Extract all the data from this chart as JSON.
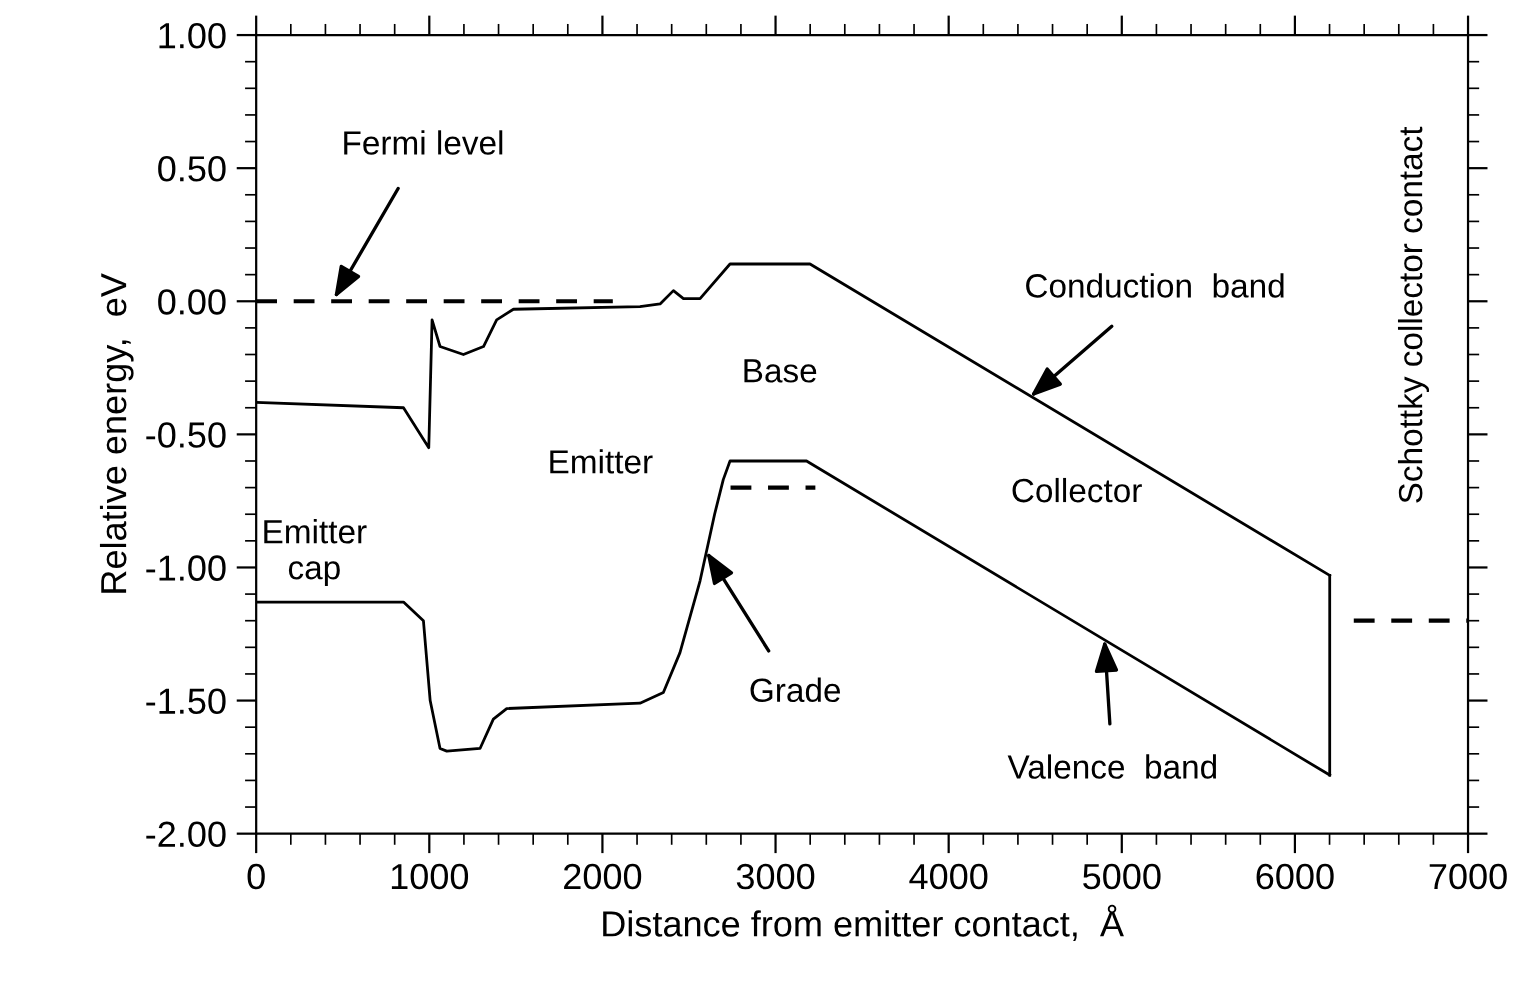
{
  "chart_data": {
    "type": "line",
    "xlabel": "Distance from emitter contact,  Å",
    "ylabel": "Relative energy,  eV",
    "xlim": [
      0,
      7000
    ],
    "ylim": [
      -2,
      1
    ],
    "xticks": [
      0,
      1000,
      2000,
      3000,
      4000,
      5000,
      6000,
      7000
    ],
    "yticks": [
      {
        "value": 1,
        "label": "1.00"
      },
      {
        "value": 0.5,
        "label": "0.50"
      },
      {
        "value": 0,
        "label": "0.00"
      },
      {
        "value": -0.5,
        "label": "-0.50"
      },
      {
        "value": -1,
        "label": "-1.00"
      },
      {
        "value": -1.5,
        "label": "-1.50"
      },
      {
        "value": -2,
        "label": "-2.00"
      }
    ],
    "grid": false,
    "legend": false,
    "marker": "none",
    "series": [
      {
        "color": "#000000",
        "line_style": "solid",
        "x": [
          0,
          851,
          997,
          1016,
          1062,
          1197,
          1313,
          1389,
          1486,
          2217,
          2333,
          2410,
          2468,
          2564,
          2737,
          3199,
          6201
        ],
        "values": [
          -0.38,
          -0.4,
          -0.55,
          -0.07,
          -0.17,
          -0.2,
          -0.17,
          -0.07,
          -0.03,
          -0.02,
          -0.01,
          0.04,
          0.01,
          0.01,
          0.14,
          0.14,
          -1.03
        ]
      },
      {
        "color": "#000000",
        "line_style": "solid",
        "x": [
          0,
          851,
          966,
          1005,
          1062,
          1101,
          1293,
          1370,
          1447,
          2217,
          2352,
          2448,
          2564,
          2648,
          2698,
          2737,
          3179,
          6201
        ],
        "values": [
          -1.13,
          -1.13,
          -1.2,
          -1.5,
          -1.68,
          -1.69,
          -1.68,
          -1.57,
          -1.53,
          -1.51,
          -1.47,
          -1.32,
          -1.05,
          -0.8,
          -0.67,
          -0.6,
          -0.6,
          -1.78
        ]
      },
      {
        "color": "#000000",
        "line_style": "solid",
        "x": [
          6201,
          6201
        ],
        "values": [
          -1.03,
          -1.78
        ]
      },
      {
        "color": "#000000",
        "line_style": "dashed",
        "x": [
          0,
          2060
        ],
        "values": [
          0,
          0
        ]
      },
      {
        "color": "#000000",
        "line_style": "dashed",
        "x": [
          2740,
          3230
        ],
        "values": [
          -0.7,
          -0.7
        ]
      },
      {
        "color": "#000000",
        "line_style": "dashed",
        "x": [
          6340,
          7000
        ],
        "values": [
          -1.2,
          -1.2
        ]
      }
    ],
    "annotations": [
      {
        "text": "Fermi level",
        "x": 450,
        "y": 0.01
      },
      {
        "text": "Conduction  band",
        "x": 4470,
        "y": -0.36
      },
      {
        "text": "Valence  band",
        "x": 4900,
        "y": -1.27
      },
      {
        "text": "Grade",
        "x": 2600,
        "y": -0.94
      },
      "Emitter\ncap",
      "Emitter",
      "Base",
      "Collector",
      "Schottky collector contact"
    ]
  }
}
